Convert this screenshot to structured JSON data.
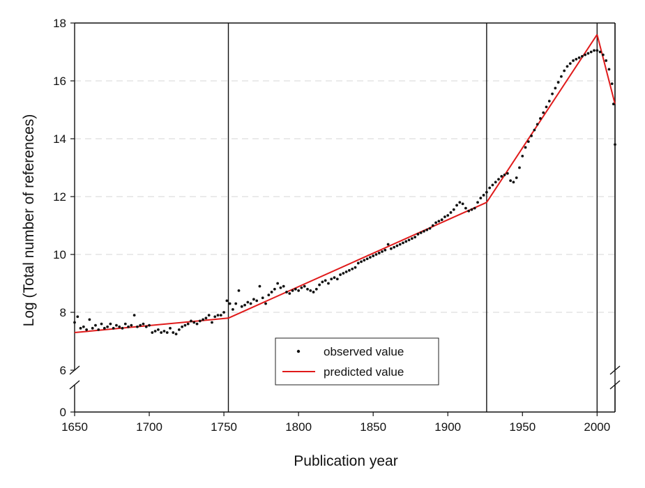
{
  "chart_data": {
    "type": "scatter",
    "xlabel": "Publication year",
    "ylabel": "Log (Total number of references)",
    "xlim": [
      1650,
      2012
    ],
    "ylim_upper": [
      6,
      18
    ],
    "ylim_lower": [
      0,
      1
    ],
    "axis_break": "y between 0 and 6",
    "x_ticks": [
      1650,
      1700,
      1750,
      1800,
      1850,
      1900,
      1950,
      2000
    ],
    "y_ticks_upper": [
      6,
      8,
      10,
      12,
      14,
      16,
      18
    ],
    "y_ticks_lower": [
      0
    ],
    "grid": "dashed horizontal lines at 8, 10, 12, 14, 16",
    "legend_placement": "bottom-center",
    "breakpoints_x": [
      1753,
      1926,
      2000,
      2012
    ],
    "series": [
      {
        "name": "observed value",
        "marker": "dot",
        "color": "#111111",
        "points": [
          [
            1650,
            7.65
          ],
          [
            1652,
            7.85
          ],
          [
            1654,
            7.45
          ],
          [
            1656,
            7.5
          ],
          [
            1658,
            7.4
          ],
          [
            1660,
            7.75
          ],
          [
            1662,
            7.45
          ],
          [
            1664,
            7.55
          ],
          [
            1666,
            7.4
          ],
          [
            1668,
            7.6
          ],
          [
            1670,
            7.45
          ],
          [
            1672,
            7.5
          ],
          [
            1674,
            7.6
          ],
          [
            1676,
            7.45
          ],
          [
            1678,
            7.55
          ],
          [
            1680,
            7.5
          ],
          [
            1682,
            7.45
          ],
          [
            1684,
            7.6
          ],
          [
            1686,
            7.5
          ],
          [
            1688,
            7.55
          ],
          [
            1690,
            7.9
          ],
          [
            1692,
            7.5
          ],
          [
            1694,
            7.55
          ],
          [
            1696,
            7.6
          ],
          [
            1698,
            7.5
          ],
          [
            1700,
            7.55
          ],
          [
            1702,
            7.3
          ],
          [
            1704,
            7.35
          ],
          [
            1706,
            7.4
          ],
          [
            1708,
            7.3
          ],
          [
            1710,
            7.35
          ],
          [
            1712,
            7.3
          ],
          [
            1714,
            7.45
          ],
          [
            1716,
            7.3
          ],
          [
            1718,
            7.25
          ],
          [
            1720,
            7.4
          ],
          [
            1722,
            7.5
          ],
          [
            1724,
            7.55
          ],
          [
            1726,
            7.6
          ],
          [
            1728,
            7.7
          ],
          [
            1730,
            7.65
          ],
          [
            1732,
            7.6
          ],
          [
            1734,
            7.7
          ],
          [
            1736,
            7.75
          ],
          [
            1738,
            7.8
          ],
          [
            1740,
            7.9
          ],
          [
            1742,
            7.65
          ],
          [
            1744,
            7.85
          ],
          [
            1746,
            7.9
          ],
          [
            1748,
            7.9
          ],
          [
            1750,
            8.0
          ],
          [
            1752,
            8.4
          ],
          [
            1754,
            8.3
          ],
          [
            1756,
            8.1
          ],
          [
            1758,
            8.3
          ],
          [
            1760,
            8.75
          ],
          [
            1762,
            8.2
          ],
          [
            1764,
            8.25
          ],
          [
            1766,
            8.35
          ],
          [
            1768,
            8.3
          ],
          [
            1770,
            8.45
          ],
          [
            1772,
            8.4
          ],
          [
            1774,
            8.9
          ],
          [
            1776,
            8.5
          ],
          [
            1778,
            8.3
          ],
          [
            1780,
            8.6
          ],
          [
            1782,
            8.7
          ],
          [
            1784,
            8.8
          ],
          [
            1786,
            9.0
          ],
          [
            1788,
            8.85
          ],
          [
            1790,
            8.9
          ],
          [
            1792,
            8.7
          ],
          [
            1794,
            8.65
          ],
          [
            1796,
            8.75
          ],
          [
            1798,
            8.8
          ],
          [
            1800,
            8.75
          ],
          [
            1802,
            8.85
          ],
          [
            1804,
            8.9
          ],
          [
            1806,
            8.8
          ],
          [
            1808,
            8.75
          ],
          [
            1810,
            8.7
          ],
          [
            1812,
            8.8
          ],
          [
            1814,
            8.95
          ],
          [
            1816,
            9.05
          ],
          [
            1818,
            9.1
          ],
          [
            1820,
            9.0
          ],
          [
            1822,
            9.15
          ],
          [
            1824,
            9.2
          ],
          [
            1826,
            9.15
          ],
          [
            1828,
            9.3
          ],
          [
            1830,
            9.35
          ],
          [
            1832,
            9.4
          ],
          [
            1834,
            9.45
          ],
          [
            1836,
            9.5
          ],
          [
            1838,
            9.55
          ],
          [
            1840,
            9.7
          ],
          [
            1842,
            9.75
          ],
          [
            1844,
            9.8
          ],
          [
            1846,
            9.85
          ],
          [
            1848,
            9.9
          ],
          [
            1850,
            9.95
          ],
          [
            1852,
            10.0
          ],
          [
            1854,
            10.05
          ],
          [
            1856,
            10.1
          ],
          [
            1858,
            10.15
          ],
          [
            1860,
            10.35
          ],
          [
            1862,
            10.2
          ],
          [
            1864,
            10.25
          ],
          [
            1866,
            10.3
          ],
          [
            1868,
            10.35
          ],
          [
            1870,
            10.4
          ],
          [
            1872,
            10.45
          ],
          [
            1874,
            10.5
          ],
          [
            1876,
            10.55
          ],
          [
            1878,
            10.6
          ],
          [
            1880,
            10.7
          ],
          [
            1882,
            10.75
          ],
          [
            1884,
            10.8
          ],
          [
            1886,
            10.85
          ],
          [
            1888,
            10.9
          ],
          [
            1890,
            11.0
          ],
          [
            1892,
            11.1
          ],
          [
            1894,
            11.15
          ],
          [
            1896,
            11.2
          ],
          [
            1898,
            11.3
          ],
          [
            1900,
            11.35
          ],
          [
            1902,
            11.45
          ],
          [
            1904,
            11.55
          ],
          [
            1906,
            11.7
          ],
          [
            1908,
            11.8
          ],
          [
            1910,
            11.75
          ],
          [
            1912,
            11.6
          ],
          [
            1914,
            11.5
          ],
          [
            1916,
            11.55
          ],
          [
            1918,
            11.6
          ],
          [
            1920,
            11.8
          ],
          [
            1922,
            11.95
          ],
          [
            1924,
            12.05
          ],
          [
            1926,
            12.15
          ],
          [
            1928,
            12.3
          ],
          [
            1930,
            12.4
          ],
          [
            1932,
            12.5
          ],
          [
            1934,
            12.6
          ],
          [
            1936,
            12.7
          ],
          [
            1938,
            12.75
          ],
          [
            1940,
            12.8
          ],
          [
            1942,
            12.55
          ],
          [
            1944,
            12.5
          ],
          [
            1946,
            12.65
          ],
          [
            1948,
            13.0
          ],
          [
            1950,
            13.4
          ],
          [
            1952,
            13.7
          ],
          [
            1954,
            13.9
          ],
          [
            1956,
            14.1
          ],
          [
            1958,
            14.3
          ],
          [
            1960,
            14.5
          ],
          [
            1962,
            14.7
          ],
          [
            1964,
            14.9
          ],
          [
            1966,
            15.1
          ],
          [
            1968,
            15.3
          ],
          [
            1970,
            15.55
          ],
          [
            1972,
            15.75
          ],
          [
            1974,
            15.95
          ],
          [
            1976,
            16.15
          ],
          [
            1978,
            16.35
          ],
          [
            1980,
            16.5
          ],
          [
            1982,
            16.6
          ],
          [
            1984,
            16.7
          ],
          [
            1986,
            16.75
          ],
          [
            1988,
            16.8
          ],
          [
            1990,
            16.85
          ],
          [
            1992,
            16.9
          ],
          [
            1994,
            16.95
          ],
          [
            1996,
            17.0
          ],
          [
            1998,
            17.05
          ],
          [
            2000,
            17.05
          ],
          [
            2002,
            17.0
          ],
          [
            2004,
            16.9
          ],
          [
            2006,
            16.7
          ],
          [
            2008,
            16.4
          ],
          [
            2010,
            15.9
          ],
          [
            2011,
            15.2
          ],
          [
            2012,
            13.8
          ]
        ]
      },
      {
        "name": "predicted value",
        "line": true,
        "color": "#e01a1a",
        "points": [
          [
            1650,
            7.3
          ],
          [
            1753,
            7.8
          ],
          [
            1926,
            11.8
          ],
          [
            2000,
            17.6
          ],
          [
            2012,
            15.2
          ]
        ]
      }
    ]
  },
  "legend": {
    "observed_label": "observed value",
    "predicted_label": "predicted value"
  }
}
